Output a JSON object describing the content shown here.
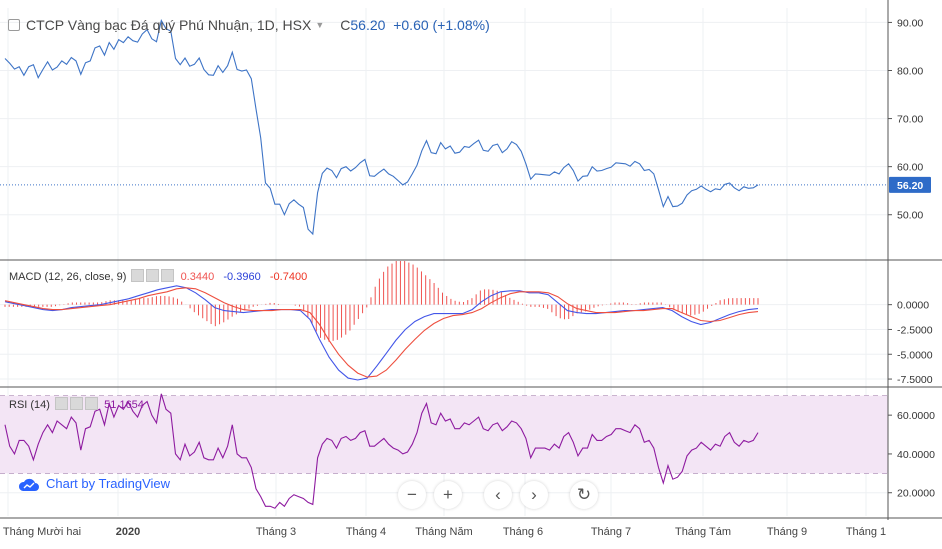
{
  "header": {
    "title": "CTCP Vàng bạc Đá quý Phú Nhuận, 1D, HSX",
    "close_prefix": "C",
    "close_value": "56.20",
    "change": "+0.60 (+1.08%)"
  },
  "macd_label": {
    "name": "MACD (12, 26, close, 9)",
    "hist": "0.3440",
    "macd": "-0.3960",
    "signal": "-0.7400"
  },
  "rsi_label": {
    "name": "RSI (14)",
    "value": "51.1654"
  },
  "brand": "Chart by TradingView",
  "colors": {
    "price": "#3e74c6",
    "macd": "#4356e8",
    "signal": "#ee4f3f",
    "hist": "#ef5350",
    "rsi": "#8e1ba0",
    "rsi_band": "#f3e5f5",
    "price_tag": "#2e6bc8"
  },
  "chart_data": [
    {
      "type": "line",
      "title": "CTCP Vàng bạc Đá quý Phú Nhuận, 1D, HSX",
      "ylim": [
        41,
        93
      ],
      "y_ticks": [
        "90.00",
        "80.00",
        "70.00",
        "60.00",
        "50.00"
      ],
      "last_value": "56.20",
      "x_ticks": [
        "Tháng Mười hai",
        "2020",
        "Tháng 3",
        "Tháng 4",
        "Tháng Năm",
        "Tháng 6",
        "Tháng 7",
        "Tháng Tám",
        "Tháng 9",
        "Tháng 1"
      ],
      "series": [
        {
          "values": [
            82.5,
            81.5,
            80.3,
            80.8,
            79.0,
            80.8,
            81.2,
            78.5,
            80.2,
            81.8,
            80.1,
            80.7,
            82.0,
            81.3,
            82.7,
            82.0,
            79.2,
            81.6,
            82.0,
            84.7,
            85.1,
            83.2,
            85.8,
            84.4,
            86.4,
            85.8,
            87.0,
            86.2,
            85.9,
            87.6,
            88.5,
            86.6,
            86.0,
            90.4,
            88.7,
            88.2,
            82.5,
            81.2,
            82.6,
            80.9,
            81.3,
            82.6,
            80.2,
            79.1,
            79.0,
            81.0,
            79.6,
            81.0,
            83.8,
            80.2,
            79.9,
            80.1,
            78.3,
            72.0,
            66.0,
            56.6,
            55.5,
            52.2,
            52.2,
            50.0,
            52.3,
            53.1,
            52.2,
            51.5,
            47.0,
            46.0,
            54.6,
            58.6,
            59.7,
            59.2,
            57.7,
            59.6,
            60.0,
            59.1,
            59.8,
            60.8,
            61.5,
            58.1,
            58.0,
            58.8,
            59.5,
            58.5,
            58.0,
            57.1,
            56.2,
            56.8,
            58.5,
            60.3,
            63.3,
            65.4,
            62.9,
            62.7,
            65.0,
            63.7,
            64.3,
            62.8,
            63.0,
            64.2,
            64.0,
            64.8,
            65.5,
            63.4,
            63.2,
            64.4,
            64.7,
            62.9,
            63.7,
            65.2,
            64.6,
            63.2,
            60.6,
            57.4,
            58.5,
            58.4,
            58.3,
            58.2,
            58.9,
            58.5,
            59.8,
            60.6,
            59.2,
            57.0,
            58.0,
            58.1,
            60.0,
            59.1,
            59.2,
            59.6,
            59.9,
            60.8,
            60.7,
            60.6,
            60.1,
            61.1,
            60.6,
            59.2,
            59.4,
            58.5,
            55.2,
            51.7,
            53.8,
            51.7,
            51.8,
            52.4,
            54.1,
            55.0,
            55.3,
            56.0,
            55.3,
            54.8,
            55.4,
            55.2,
            56.3,
            56.6,
            55.6,
            55.0,
            55.8,
            55.5,
            55.6,
            56.2
          ]
        }
      ]
    },
    {
      "type": "bar",
      "title": "MACD (12, 26, close, 9)",
      "ylim": [
        -8.2,
        4.3
      ],
      "y_ticks": [
        "0.0000",
        "-2.5000",
        "-5.0000",
        "-7.5000"
      ],
      "series": [
        {
          "name": "MACD",
          "values": [
            0.3,
            0.1,
            -0.1,
            -0.3,
            -0.5,
            -0.6,
            -0.5,
            -0.3,
            -0.2,
            -0.1,
            0.0,
            0.2,
            0.4,
            0.6,
            0.9,
            1.2,
            1.5,
            1.7,
            1.9,
            1.7,
            1.2,
            0.5,
            -0.3,
            -0.6,
            -0.7,
            -0.8,
            -0.7,
            -0.6,
            -0.5,
            -0.5,
            -0.5,
            -0.6,
            -1.5,
            -3.5,
            -5.3,
            -6.6,
            -7.4,
            -7.6,
            -7.4,
            -6.2,
            -4.9,
            -3.6,
            -2.5,
            -1.7,
            -1.2,
            -0.9,
            -0.9,
            -0.9,
            -0.9,
            -0.5,
            0.3,
            0.9,
            1.3,
            1.4,
            1.4,
            1.2,
            1.2,
            1.0,
            0.2,
            -0.6,
            -0.8,
            -0.9,
            -0.9,
            -0.8,
            -0.7,
            -0.6,
            -0.6,
            -0.5,
            -0.4,
            -0.3,
            -0.6,
            -1.2,
            -1.7,
            -2.0,
            -1.8,
            -1.4,
            -1.0,
            -0.7,
            -0.5,
            -0.4
          ]
        },
        {
          "name": "Signal",
          "values": [
            0.4,
            0.2,
            0.0,
            -0.2,
            -0.4,
            -0.5,
            -0.5,
            -0.4,
            -0.3,
            -0.2,
            -0.1,
            0.0,
            0.2,
            0.4,
            0.6,
            0.9,
            1.1,
            1.3,
            1.6,
            1.7,
            1.6,
            1.2,
            0.7,
            0.2,
            -0.2,
            -0.5,
            -0.6,
            -0.6,
            -0.6,
            -0.5,
            -0.5,
            -0.5,
            -0.8,
            -2.0,
            -3.6,
            -5.0,
            -6.1,
            -6.9,
            -7.3,
            -7.2,
            -6.6,
            -5.6,
            -4.5,
            -3.5,
            -2.6,
            -1.9,
            -1.4,
            -1.1,
            -1.0,
            -0.8,
            -0.4,
            0.2,
            0.7,
            1.1,
            1.3,
            1.3,
            1.3,
            1.2,
            0.8,
            0.1,
            -0.4,
            -0.6,
            -0.8,
            -0.8,
            -0.8,
            -0.7,
            -0.6,
            -0.6,
            -0.5,
            -0.4,
            -0.4,
            -0.8,
            -1.2,
            -1.6,
            -1.7,
            -1.6,
            -1.3,
            -1.0,
            -0.8,
            -0.7
          ]
        }
      ]
    },
    {
      "type": "line",
      "title": "RSI (14)",
      "ylim": [
        8,
        74
      ],
      "y_ticks": [
        "60.0000",
        "40.0000",
        "20.0000"
      ],
      "band": [
        30,
        70
      ],
      "last_value": "51.1654",
      "series": [
        {
          "name": "RSI (14)",
          "values": [
            55,
            44,
            40,
            47,
            47,
            44,
            37,
            45,
            51,
            55,
            51,
            57,
            55,
            53,
            59,
            56,
            42,
            53,
            54,
            62,
            63,
            55,
            66,
            59,
            65,
            63,
            67,
            62,
            59,
            65,
            67,
            60,
            56,
            71,
            63,
            61,
            40,
            37,
            45,
            39,
            41,
            46,
            38,
            37,
            37,
            43,
            38,
            44,
            55,
            40,
            38,
            38,
            33,
            22,
            18,
            13,
            13,
            12,
            15,
            13,
            17,
            19,
            18,
            17,
            15,
            14,
            38,
            45,
            48,
            47,
            43,
            48,
            49,
            47,
            48,
            51,
            52,
            44,
            44,
            46,
            48,
            45,
            43,
            42,
            40,
            41,
            45,
            51,
            61,
            66,
            56,
            55,
            61,
            57,
            58,
            53,
            53,
            56,
            55,
            57,
            59,
            53,
            52,
            55,
            56,
            52,
            54,
            57,
            56,
            53,
            48,
            38,
            43,
            43,
            43,
            42,
            45,
            43,
            49,
            51,
            46,
            39,
            43,
            43,
            50,
            47,
            47,
            49,
            50,
            53,
            53,
            52,
            51,
            55,
            53,
            46,
            47,
            43,
            33,
            25,
            34,
            27,
            28,
            31,
            39,
            42,
            43,
            46,
            44,
            42,
            45,
            44,
            49,
            51,
            46,
            44,
            47,
            46,
            47,
            51
          ]
        }
      ]
    }
  ]
}
